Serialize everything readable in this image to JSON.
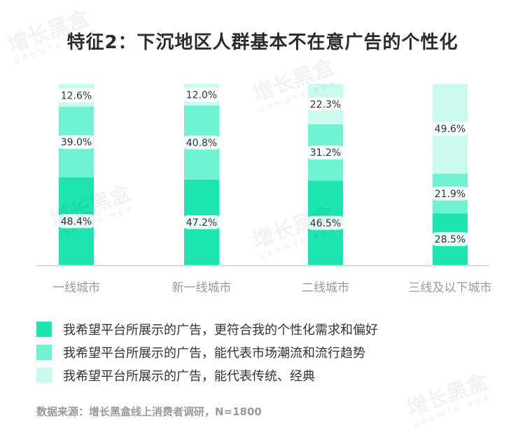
{
  "title": "特征2：下沉地区人群基本不在意广告的个性化",
  "chart_data": {
    "type": "bar",
    "stacked": true,
    "categories": [
      "一线城市",
      "新一线城市",
      "二线城市",
      "三线及以下城市"
    ],
    "series": [
      {
        "name": "我希望平台所展示的广告，更符合我的个性化需求和偏好",
        "values": [
          48.4,
          47.2,
          46.5,
          28.5
        ],
        "color": "#1de4b0"
      },
      {
        "name": "我希望平台所展示的广告，能代表市场潮流和流行趋势",
        "values": [
          39.0,
          40.8,
          31.2,
          21.9
        ],
        "color": "#6ff2d2"
      },
      {
        "name": "我希望平台所展示的广告，能代表传统、经典",
        "values": [
          12.6,
          12.0,
          22.3,
          49.6
        ],
        "color": "#c8faee"
      }
    ],
    "data_labels": [
      [
        "48.4%",
        "47.2%",
        "46.5%",
        "28.5%"
      ],
      [
        "39.0%",
        "40.8%",
        "31.2%",
        "21.9%"
      ],
      [
        "12.6%",
        "12.0%",
        "22.3%",
        "49.6%"
      ]
    ],
    "ylim": [
      0,
      100
    ]
  },
  "legend": [
    {
      "label": "我希望平台所展示的广告，更符合我的个性化需求和偏好",
      "color": "#1de4b0"
    },
    {
      "label": "我希望平台所展示的广告，能代表市场潮流和流行趋势",
      "color": "#6ff2d2"
    },
    {
      "label": "我希望平台所展示的广告，能代表传统、经典",
      "color": "#c8faee"
    }
  ],
  "source": "数据来源：增长黑盒线上消费者调研，N=1800",
  "watermark": {
    "cn": "增长黑盒",
    "en": "GROWTH BOX"
  }
}
